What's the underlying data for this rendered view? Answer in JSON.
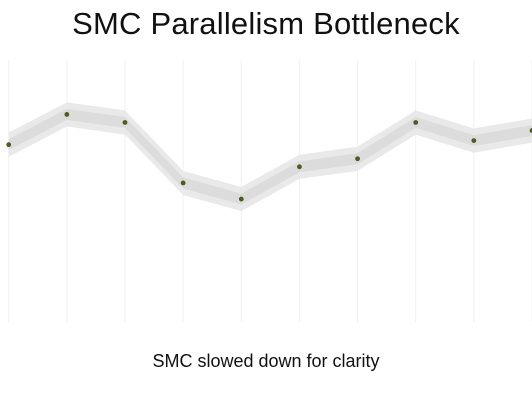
{
  "slide": {
    "title": "SMC Parallelism Bottleneck",
    "caption": "SMC slowed down for clarity"
  },
  "colors": {
    "background": "#ffffff",
    "point": "#4a5e1e",
    "band": "#e9e9e9",
    "band_core": "#dcdcdc",
    "grid": "#f0f0f0",
    "text": "#111111"
  },
  "chart_data": {
    "type": "line",
    "title": "SMC Parallelism Bottleneck",
    "xlabel": "",
    "ylabel": "",
    "grid": "vertical",
    "legend": "none",
    "x": [
      0,
      1,
      2,
      3,
      4,
      5,
      6,
      7,
      8,
      9
    ],
    "series": [
      {
        "values": [
          4.8,
          6.3,
          5.9,
          2.9,
          2.1,
          3.7,
          4.1,
          5.9,
          5.0,
          5.5
        ],
        "band": 0.6
      }
    ],
    "xlim": [
      -0.15,
      9.0
    ],
    "ylim": [
      -4.0,
      9.0
    ]
  }
}
